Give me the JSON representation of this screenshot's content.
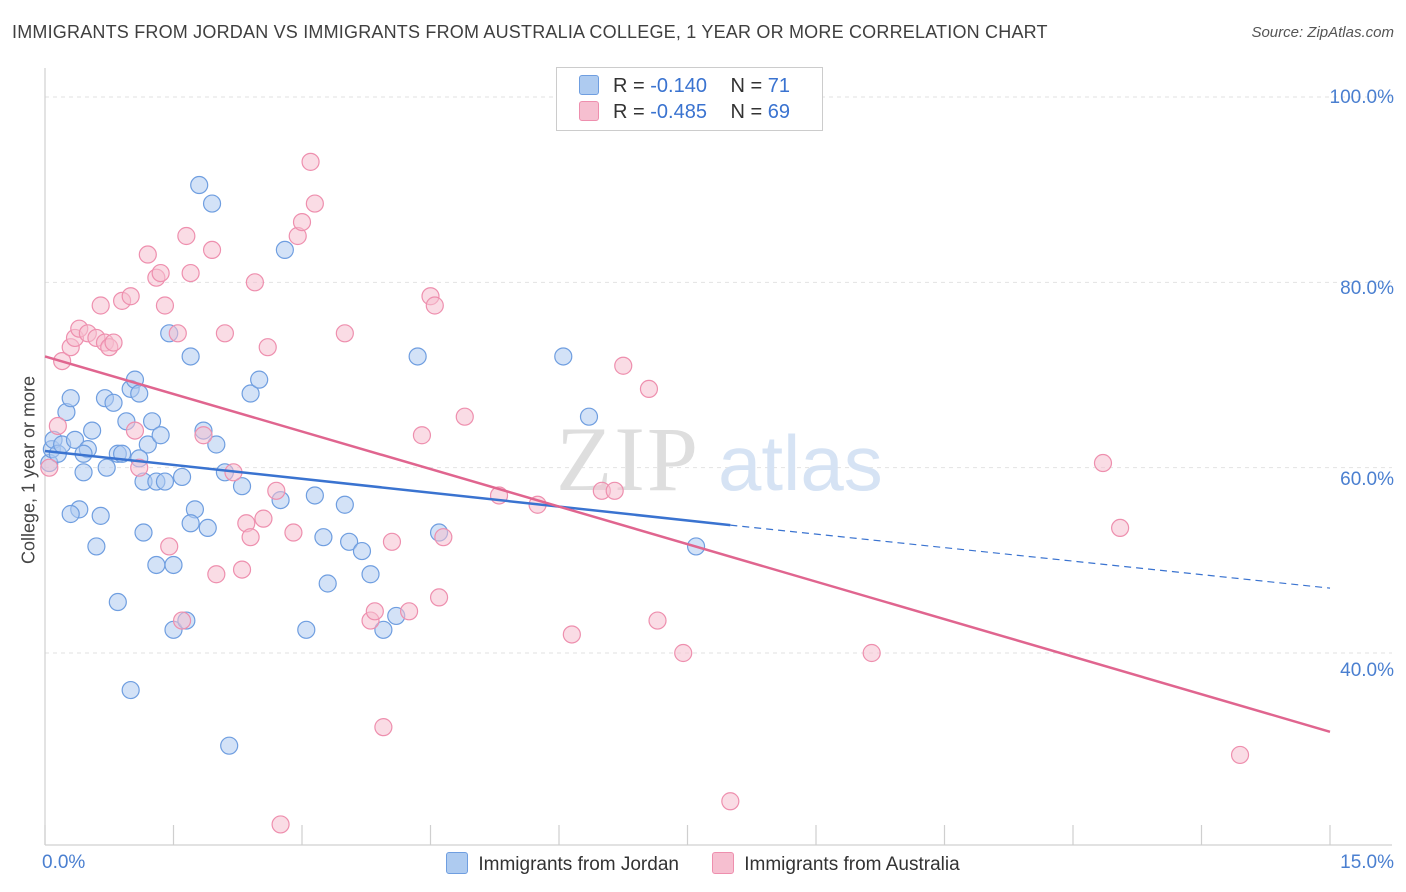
{
  "title": "IMMIGRANTS FROM JORDAN VS IMMIGRANTS FROM AUSTRALIA COLLEGE, 1 YEAR OR MORE CORRELATION CHART",
  "source": "Source: ZipAtlas.com",
  "watermark": {
    "zip": "ZIP",
    "atlas": "atlas"
  },
  "colors": {
    "jordan_fill": "#aecbf0",
    "jordan_stroke": "#6f9ee0",
    "jordan_line": "#3a73d0",
    "australia_fill": "#f6bfd0",
    "australia_stroke": "#ee8fae",
    "australia_line": "#e0658f",
    "axis_label": "#4a7fd0",
    "grid": "#e2e2e2"
  },
  "legend": {
    "jordan": {
      "r_label": "R =",
      "r_value": "-0.140",
      "n_label": "N =",
      "n_value": "71"
    },
    "australia": {
      "r_label": "R =",
      "r_value": "-0.485",
      "n_label": "N =",
      "n_value": "69"
    }
  },
  "chart_data": {
    "type": "scatter",
    "title": "IMMIGRANTS FROM JORDAN VS IMMIGRANTS FROM AUSTRALIA COLLEGE, 1 YEAR OR MORE CORRELATION CHART",
    "xlabel": "",
    "ylabel": "College, 1 year or more",
    "xlim": [
      0,
      15
    ],
    "ylim": [
      20,
      100
    ],
    "x_tick_labels": {
      "min": "0.0%",
      "max": "15.0%"
    },
    "y_ticks": [
      40,
      60,
      80,
      100
    ],
    "y_tick_labels": [
      "40.0%",
      "60.0%",
      "80.0%",
      "100.0%"
    ],
    "series": [
      {
        "name": "Immigrants from Jordan",
        "color": "#aecbf0",
        "trend": {
          "x_start": 0,
          "y_start": 61.8,
          "x_solid_end": 8.0,
          "y_solid_end": 53.8,
          "x_end": 15,
          "y_end": 47.0
        },
        "points": [
          [
            0.05,
            60.5
          ],
          [
            0.08,
            62.0
          ],
          [
            0.1,
            63.0
          ],
          [
            0.15,
            61.5
          ],
          [
            0.2,
            62.5
          ],
          [
            0.25,
            66.0
          ],
          [
            0.3,
            67.5
          ],
          [
            0.35,
            63.0
          ],
          [
            0.4,
            55.5
          ],
          [
            0.45,
            59.5
          ],
          [
            0.5,
            62.0
          ],
          [
            0.55,
            64.0
          ],
          [
            0.6,
            51.5
          ],
          [
            0.65,
            54.8
          ],
          [
            0.7,
            67.5
          ],
          [
            0.72,
            60.0
          ],
          [
            0.8,
            67.0
          ],
          [
            0.85,
            61.5
          ],
          [
            0.85,
            45.5
          ],
          [
            0.9,
            61.5
          ],
          [
            0.95,
            65.0
          ],
          [
            1.0,
            68.5
          ],
          [
            1.05,
            69.5
          ],
          [
            1.1,
            68.0
          ],
          [
            1.15,
            58.5
          ],
          [
            1.15,
            53.0
          ],
          [
            1.2,
            62.5
          ],
          [
            1.25,
            65.0
          ],
          [
            1.3,
            58.5
          ],
          [
            1.3,
            49.5
          ],
          [
            1.35,
            63.5
          ],
          [
            1.4,
            58.5
          ],
          [
            1.45,
            74.5
          ],
          [
            1.5,
            49.5
          ],
          [
            1.5,
            42.5
          ],
          [
            1.6,
            59.0
          ],
          [
            1.65,
            43.5
          ],
          [
            1.7,
            72.0
          ],
          [
            1.8,
            90.5
          ],
          [
            1.85,
            64.0
          ],
          [
            1.9,
            53.5
          ],
          [
            1.95,
            88.5
          ],
          [
            2.1,
            59.5
          ],
          [
            2.3,
            58.0
          ],
          [
            2.4,
            68.0
          ],
          [
            2.5,
            69.5
          ],
          [
            2.75,
            56.5
          ],
          [
            2.8,
            83.5
          ],
          [
            3.05,
            42.5
          ],
          [
            3.15,
            57.0
          ],
          [
            3.25,
            52.5
          ],
          [
            3.3,
            47.5
          ],
          [
            3.55,
            52.0
          ],
          [
            3.5,
            56.0
          ],
          [
            3.7,
            51.0
          ],
          [
            3.8,
            48.5
          ],
          [
            3.95,
            42.5
          ],
          [
            4.1,
            44.0
          ],
          [
            4.35,
            72.0
          ],
          [
            4.6,
            53.0
          ],
          [
            6.05,
            72.0
          ],
          [
            6.35,
            65.5
          ],
          [
            7.6,
            51.5
          ],
          [
            0.3,
            55.0
          ],
          [
            1.0,
            36.0
          ],
          [
            2.15,
            30.0
          ],
          [
            1.75,
            55.5
          ],
          [
            2.0,
            62.5
          ],
          [
            0.45,
            61.5
          ],
          [
            1.1,
            61.0
          ],
          [
            1.7,
            54.0
          ]
        ]
      },
      {
        "name": "Immigrants from Australia",
        "color": "#f6bfd0",
        "trend": {
          "x_start": 0,
          "y_start": 72.0,
          "x_end": 15,
          "y_end": 31.5
        },
        "points": [
          [
            0.05,
            60.0
          ],
          [
            0.15,
            64.5
          ],
          [
            0.2,
            71.5
          ],
          [
            0.3,
            73.0
          ],
          [
            0.35,
            74.0
          ],
          [
            0.4,
            75.0
          ],
          [
            0.5,
            74.5
          ],
          [
            0.6,
            74.0
          ],
          [
            0.65,
            77.5
          ],
          [
            0.7,
            73.5
          ],
          [
            0.75,
            73.0
          ],
          [
            0.8,
            73.5
          ],
          [
            0.9,
            78.0
          ],
          [
            1.0,
            78.5
          ],
          [
            1.05,
            64.0
          ],
          [
            1.1,
            60.0
          ],
          [
            1.2,
            83.0
          ],
          [
            1.3,
            80.5
          ],
          [
            1.35,
            81.0
          ],
          [
            1.4,
            77.5
          ],
          [
            1.45,
            51.5
          ],
          [
            1.55,
            74.5
          ],
          [
            1.6,
            43.5
          ],
          [
            1.65,
            85.0
          ],
          [
            1.7,
            81.0
          ],
          [
            1.85,
            63.5
          ],
          [
            1.95,
            83.5
          ],
          [
            2.0,
            48.5
          ],
          [
            2.1,
            74.5
          ],
          [
            2.2,
            59.5
          ],
          [
            2.3,
            49.0
          ],
          [
            2.35,
            54.0
          ],
          [
            2.4,
            52.5
          ],
          [
            2.45,
            80.0
          ],
          [
            2.55,
            54.5
          ],
          [
            2.6,
            73.0
          ],
          [
            2.7,
            57.5
          ],
          [
            2.75,
            21.5
          ],
          [
            2.9,
            53.0
          ],
          [
            2.95,
            85.0
          ],
          [
            3.0,
            86.5
          ],
          [
            3.1,
            93.0
          ],
          [
            3.15,
            88.5
          ],
          [
            3.5,
            74.5
          ],
          [
            3.8,
            43.5
          ],
          [
            3.85,
            44.5
          ],
          [
            3.95,
            32.0
          ],
          [
            4.05,
            52.0
          ],
          [
            4.25,
            44.5
          ],
          [
            4.4,
            63.5
          ],
          [
            4.5,
            78.5
          ],
          [
            4.55,
            77.5
          ],
          [
            4.6,
            46.0
          ],
          [
            4.65,
            52.5
          ],
          [
            4.9,
            65.5
          ],
          [
            5.3,
            57.0
          ],
          [
            5.75,
            56.0
          ],
          [
            6.15,
            42.0
          ],
          [
            6.5,
            57.5
          ],
          [
            6.65,
            57.5
          ],
          [
            6.75,
            71.0
          ],
          [
            7.05,
            68.5
          ],
          [
            7.15,
            43.5
          ],
          [
            7.45,
            40.0
          ],
          [
            8.0,
            24.0
          ],
          [
            9.65,
            40.0
          ],
          [
            12.35,
            60.5
          ],
          [
            12.55,
            53.5
          ],
          [
            13.95,
            29.0
          ]
        ]
      }
    ]
  },
  "bottom_legend": {
    "jordan": "Immigrants from Jordan",
    "australia": "Immigrants from Australia"
  }
}
